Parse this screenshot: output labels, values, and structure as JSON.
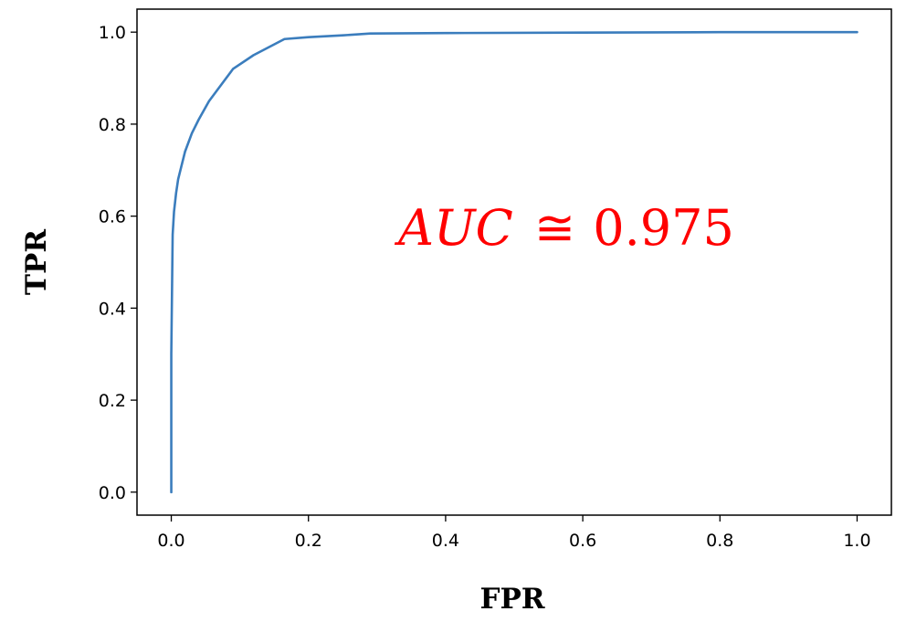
{
  "chart_data": {
    "type": "line",
    "title": "",
    "xlabel": "FPR",
    "ylabel": "TPR",
    "xlim": [
      -0.05,
      1.05
    ],
    "ylim": [
      -0.05,
      1.05
    ],
    "xticks": [
      "0.0",
      "0.2",
      "0.4",
      "0.6",
      "0.8",
      "1.0"
    ],
    "yticks": [
      "0.0",
      "0.2",
      "0.4",
      "0.6",
      "0.8",
      "1.0"
    ],
    "grid": false,
    "legend": "none",
    "series": [
      {
        "color": "#3b7dbd",
        "x": [
          0.0,
          0.0,
          0.002,
          0.004,
          0.007,
          0.01,
          0.015,
          0.02,
          0.03,
          0.04,
          0.055,
          0.07,
          0.09,
          0.12,
          0.165,
          0.2,
          0.25,
          0.29,
          0.4,
          0.6,
          0.8,
          1.0
        ],
        "y": [
          0.0,
          0.3,
          0.56,
          0.61,
          0.65,
          0.68,
          0.71,
          0.74,
          0.78,
          0.81,
          0.85,
          0.88,
          0.92,
          0.95,
          0.985,
          0.989,
          0.993,
          0.997,
          0.998,
          0.999,
          1.0,
          1.0
        ]
      }
    ],
    "annotation": {
      "var": "AUC",
      "op": "≅",
      "value": "0.975",
      "color": "#ff0000"
    }
  }
}
